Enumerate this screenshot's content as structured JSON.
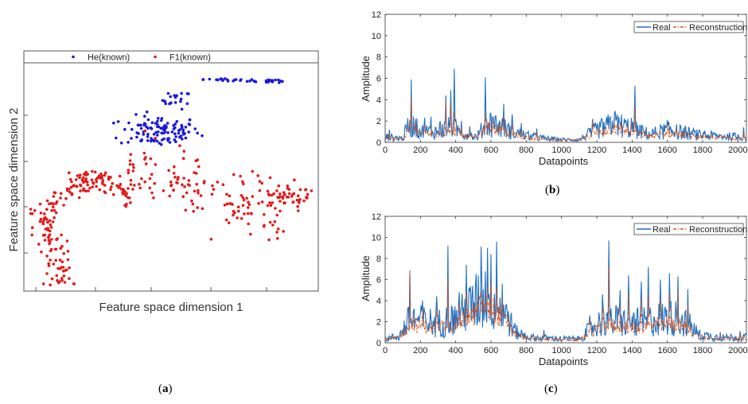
{
  "colors": {
    "blue": "#1f6fc0",
    "orange": "#d95319",
    "scatter_blue": "#1a1adb",
    "scatter_red": "#e31a1a"
  },
  "chart_data": [
    {
      "id": "a",
      "type": "scatter",
      "caption": "a",
      "xlabel": "Feature space dimension 1",
      "ylabel": "Feature space dimension 2",
      "xlim": [
        0,
        100
      ],
      "ylim": [
        0,
        100
      ],
      "legend": {
        "placement": "top",
        "entries": [
          "He(known)",
          "F1(known)"
        ]
      },
      "series": [
        {
          "name": "He(known)",
          "color": "#1a1adb",
          "clusters": [
            {
              "cx": 75,
              "cy": 94,
              "spread_x": 14,
              "spread_y": 1.0,
              "n": 40
            },
            {
              "cx": 52,
              "cy": 85,
              "spread_x": 2.5,
              "spread_y": 2.0,
              "n": 20
            },
            {
              "cx": 46,
              "cy": 71,
              "spread_x": 7,
              "spread_y": 3.5,
              "n": 110
            }
          ]
        },
        {
          "name": "F1(known)",
          "color": "#e31a1a",
          "clusters": [
            {
              "cx": 7,
              "cy": 18,
              "spread_x": 4,
              "spread_y": 12,
              "n": 90
            },
            {
              "cx": 22,
              "cy": 50,
              "spread_x": 11,
              "spread_y": 3.5,
              "n": 110
            },
            {
              "cx": 60,
              "cy": 46,
              "spread_x": 30,
              "spread_y": 7,
              "n": 150
            },
            {
              "cx": 92,
              "cy": 42,
              "spread_x": 4,
              "spread_y": 3,
              "n": 40
            }
          ]
        }
      ]
    },
    {
      "id": "b",
      "type": "line",
      "caption": "b",
      "xlabel": "Datapoints",
      "ylabel": "Amplitude",
      "xlim": [
        0,
        2048
      ],
      "ylim": [
        0,
        12
      ],
      "xticks": [
        0,
        200,
        400,
        600,
        800,
        1000,
        1200,
        1400,
        1600,
        1800,
        2000
      ],
      "yticks": [
        0,
        2,
        4,
        6,
        8,
        10,
        12
      ],
      "legend": {
        "placement": "top-right",
        "entries": [
          "Real",
          "Reconstruction"
        ]
      },
      "series": [
        {
          "name": "Real",
          "color": "#1f6fc0",
          "style": "solid"
        },
        {
          "name": "Reconstruction",
          "color": "#d95319",
          "style": "dashdot"
        }
      ],
      "envelope": [
        [
          0,
          0.4
        ],
        [
          100,
          0.3
        ],
        [
          140,
          1.5
        ],
        [
          200,
          0.8
        ],
        [
          300,
          0.8
        ],
        [
          380,
          1.2
        ],
        [
          450,
          0.6
        ],
        [
          520,
          0.4
        ],
        [
          580,
          1.5
        ],
        [
          650,
          1.2
        ],
        [
          720,
          0.8
        ],
        [
          800,
          0.5
        ],
        [
          900,
          0.3
        ],
        [
          1000,
          0.2
        ],
        [
          1100,
          0.2
        ],
        [
          1180,
          0.8
        ],
        [
          1300,
          1.4
        ],
        [
          1400,
          1.0
        ],
        [
          1500,
          0.6
        ],
        [
          1600,
          0.9
        ],
        [
          1700,
          0.7
        ],
        [
          1800,
          0.5
        ],
        [
          2048,
          0.4
        ]
      ],
      "peaks": [
        {
          "x": 25,
          "real": 1.2,
          "recon": 0.9
        },
        {
          "x": 148,
          "real": 5.9,
          "recon": 4.2
        },
        {
          "x": 170,
          "real": 2.2,
          "recon": 1.8
        },
        {
          "x": 225,
          "real": 2.3,
          "recon": 1.6
        },
        {
          "x": 260,
          "real": 2.4,
          "recon": 1.5
        },
        {
          "x": 310,
          "real": 2.0,
          "recon": 1.5
        },
        {
          "x": 345,
          "real": 4.4,
          "recon": 3.8
        },
        {
          "x": 370,
          "real": 4.9,
          "recon": 3.6
        },
        {
          "x": 392,
          "real": 6.9,
          "recon": 2.9
        },
        {
          "x": 430,
          "real": 2.0,
          "recon": 1.4
        },
        {
          "x": 480,
          "real": 1.5,
          "recon": 1.0
        },
        {
          "x": 566,
          "real": 6.1,
          "recon": 2.7
        },
        {
          "x": 610,
          "real": 2.4,
          "recon": 2.0
        },
        {
          "x": 670,
          "real": 3.6,
          "recon": 2.5
        },
        {
          "x": 720,
          "real": 2.6,
          "recon": 1.7
        },
        {
          "x": 770,
          "real": 1.8,
          "recon": 1.2
        },
        {
          "x": 860,
          "real": 1.3,
          "recon": 0.9
        },
        {
          "x": 1175,
          "real": 2.2,
          "recon": 2.0
        },
        {
          "x": 1250,
          "real": 1.9,
          "recon": 1.4
        },
        {
          "x": 1300,
          "real": 2.8,
          "recon": 2.2
        },
        {
          "x": 1340,
          "real": 2.6,
          "recon": 1.8
        },
        {
          "x": 1395,
          "real": 2.3,
          "recon": 1.9
        },
        {
          "x": 1415,
          "real": 5.3,
          "recon": 3.4
        },
        {
          "x": 1600,
          "real": 2.1,
          "recon": 1.7
        },
        {
          "x": 1650,
          "real": 1.7,
          "recon": 1.3
        },
        {
          "x": 1700,
          "real": 1.5,
          "recon": 1.2
        },
        {
          "x": 1810,
          "real": 1.1,
          "recon": 0.8
        },
        {
          "x": 2030,
          "real": 1.4,
          "recon": 0.9
        }
      ]
    },
    {
      "id": "c",
      "type": "line",
      "caption": "c",
      "xlabel": "Datapoints",
      "ylabel": "Amplitude",
      "xlim": [
        0,
        2048
      ],
      "ylim": [
        0,
        12
      ],
      "xticks": [
        0,
        200,
        400,
        600,
        800,
        1000,
        1200,
        1400,
        1600,
        1800,
        2000
      ],
      "yticks": [
        0,
        2,
        4,
        6,
        8,
        10,
        12
      ],
      "legend": {
        "placement": "top-right",
        "entries": [
          "Real",
          "Reconstruction"
        ]
      },
      "series": [
        {
          "name": "Real",
          "color": "#1f6fc0",
          "style": "solid"
        },
        {
          "name": "Reconstruction",
          "color": "#d95319",
          "style": "dashdot"
        }
      ],
      "envelope": [
        [
          0,
          0.3
        ],
        [
          80,
          0.5
        ],
        [
          140,
          1.8
        ],
        [
          220,
          1.6
        ],
        [
          300,
          1.5
        ],
        [
          400,
          1.8
        ],
        [
          480,
          2.6
        ],
        [
          560,
          3.6
        ],
        [
          620,
          3.2
        ],
        [
          680,
          2.2
        ],
        [
          740,
          0.8
        ],
        [
          820,
          0.4
        ],
        [
          1000,
          0.3
        ],
        [
          1100,
          0.3
        ],
        [
          1180,
          1.2
        ],
        [
          1250,
          1.8
        ],
        [
          1350,
          1.6
        ],
        [
          1450,
          1.5
        ],
        [
          1550,
          1.8
        ],
        [
          1650,
          1.9
        ],
        [
          1720,
          1.4
        ],
        [
          1780,
          0.6
        ],
        [
          1900,
          0.4
        ],
        [
          2048,
          0.4
        ]
      ],
      "peaks": [
        {
          "x": 140,
          "real": 6.7,
          "recon": 6.9
        },
        {
          "x": 160,
          "real": 3.0,
          "recon": 2.5
        },
        {
          "x": 210,
          "real": 4.0,
          "recon": 3.2
        },
        {
          "x": 290,
          "real": 4.4,
          "recon": 3.3
        },
        {
          "x": 355,
          "real": 9.2,
          "recon": 6.0
        },
        {
          "x": 420,
          "real": 4.8,
          "recon": 3.7
        },
        {
          "x": 460,
          "real": 7.4,
          "recon": 4.8
        },
        {
          "x": 510,
          "real": 5.5,
          "recon": 3.7
        },
        {
          "x": 545,
          "real": 9.1,
          "recon": 4.9
        },
        {
          "x": 580,
          "real": 9.0,
          "recon": 5.4
        },
        {
          "x": 600,
          "real": 8.4,
          "recon": 5.6
        },
        {
          "x": 630,
          "real": 9.6,
          "recon": 5.2
        },
        {
          "x": 665,
          "real": 5.6,
          "recon": 4.0
        },
        {
          "x": 700,
          "real": 3.0,
          "recon": 2.4
        },
        {
          "x": 900,
          "real": 1.2,
          "recon": 0.9
        },
        {
          "x": 1160,
          "real": 2.6,
          "recon": 2.2
        },
        {
          "x": 1230,
          "real": 4.6,
          "recon": 3.4
        },
        {
          "x": 1268,
          "real": 9.7,
          "recon": 7.2
        },
        {
          "x": 1330,
          "real": 5.0,
          "recon": 3.6
        },
        {
          "x": 1380,
          "real": 6.4,
          "recon": 4.6
        },
        {
          "x": 1450,
          "real": 5.8,
          "recon": 4.3
        },
        {
          "x": 1490,
          "real": 7.2,
          "recon": 4.6
        },
        {
          "x": 1560,
          "real": 6.0,
          "recon": 4.2
        },
        {
          "x": 1610,
          "real": 6.6,
          "recon": 4.8
        },
        {
          "x": 1660,
          "real": 6.3,
          "recon": 4.8
        },
        {
          "x": 1715,
          "real": 5.1,
          "recon": 3.6
        },
        {
          "x": 1900,
          "real": 1.0,
          "recon": 0.8
        },
        {
          "x": 2010,
          "real": 1.1,
          "recon": 0.9
        }
      ]
    }
  ]
}
